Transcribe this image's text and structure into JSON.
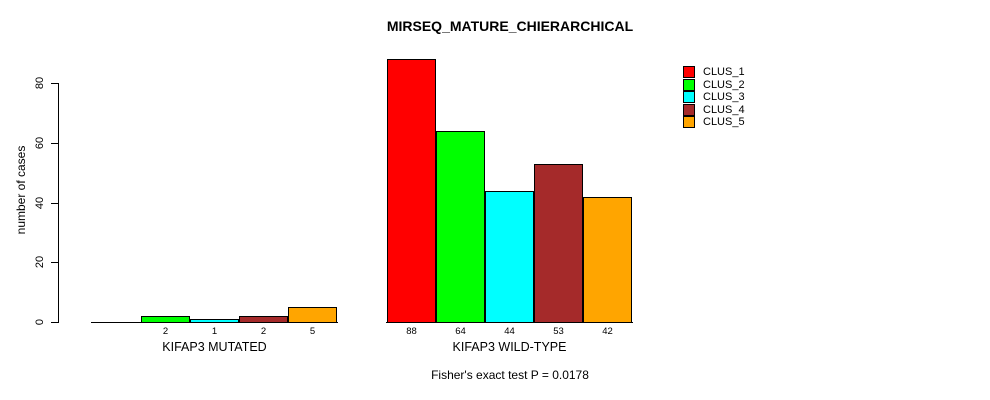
{
  "title": "MIRSEQ_MATURE_CHIERARCHICAL",
  "footer": "Fisher's exact test P = 0.0178",
  "y_axis": {
    "label": "number of cases",
    "ticks": [
      0,
      20,
      40,
      60,
      80
    ]
  },
  "legend": {
    "position": "top-right",
    "entries": [
      {
        "label": "CLUS_1",
        "color": "#FF0000"
      },
      {
        "label": "CLUS_2",
        "color": "#00FF00"
      },
      {
        "label": "CLUS_3",
        "color": "#00FFFF"
      },
      {
        "label": "CLUS_4",
        "color": "#A52A2A"
      },
      {
        "label": "CLUS_5",
        "color": "#FFA500"
      }
    ]
  },
  "chart_data": {
    "type": "bar",
    "title": "MIRSEQ_MATURE_CHIERARCHICAL",
    "xlabel": "",
    "ylabel": "number of cases",
    "ylim": [
      0,
      88
    ],
    "axis_ticks": [
      0,
      20,
      40,
      60,
      80
    ],
    "grid": false,
    "legend_position": "top-right",
    "categories": [
      "KIFAP3 MUTATED",
      "KIFAP3 WILD-TYPE"
    ],
    "series": [
      {
        "name": "CLUS_1",
        "color": "#FF0000",
        "values": [
          0,
          88
        ]
      },
      {
        "name": "CLUS_2",
        "color": "#00FF00",
        "values": [
          2,
          64
        ]
      },
      {
        "name": "CLUS_3",
        "color": "#00FFFF",
        "values": [
          1,
          44
        ]
      },
      {
        "name": "CLUS_4",
        "color": "#A52A2A",
        "values": [
          2,
          53
        ]
      },
      {
        "name": "CLUS_5",
        "color": "#FFA500",
        "values": [
          5,
          42
        ]
      }
    ],
    "bar_value_labels_shown_for_nonzero_only": true,
    "annotation": "Fisher's exact test P = 0.0178"
  }
}
